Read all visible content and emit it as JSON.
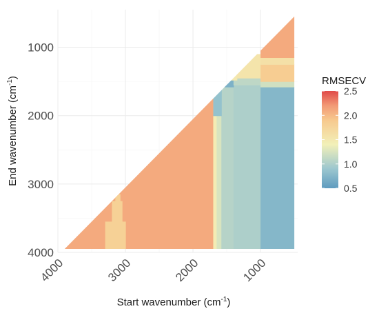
{
  "chart_data": {
    "type": "heatmap",
    "title": "",
    "xlabel": {
      "text": "Start wavenumber (cm",
      "sup": "-1",
      "tail": ")"
    },
    "ylabel": {
      "text": "End wavenumber (cm",
      "sup": "-1",
      "tail": ")"
    },
    "xlim": [
      4000,
      450
    ],
    "ylim": [
      450,
      4000
    ],
    "x_ticks": [
      4000,
      3000,
      2000,
      1000
    ],
    "y_ticks": [
      1000,
      2000,
      3000,
      4000
    ],
    "x_tick_labels": [
      "4000",
      "3000",
      "2000",
      "1000"
    ],
    "y_tick_labels": [
      "1000",
      "2000",
      "3000",
      "4000"
    ],
    "grid": true,
    "triangle": {
      "x_start": 3900,
      "y_start": 3950,
      "x_end": 500,
      "y_end": 550
    },
    "colorbar": {
      "title": "RMSECV",
      "ticks": [
        0.5,
        1.0,
        1.5,
        2.0,
        2.5
      ],
      "tick_labels": [
        "0.5",
        "1.0",
        "1.5",
        "2.0",
        "2.5"
      ],
      "range": [
        0.5,
        2.5
      ],
      "stops": [
        {
          "v": 0.5,
          "color": "#5e9bbf"
        },
        {
          "v": 0.9,
          "color": "#9cc7cf"
        },
        {
          "v": 1.4,
          "color": "#f2f0b8"
        },
        {
          "v": 1.9,
          "color": "#f7c98e"
        },
        {
          "v": 2.2,
          "color": "#f29a76"
        },
        {
          "v": 2.5,
          "color": "#e04a49"
        }
      ]
    },
    "regions": [
      {
        "x": [
          3900,
          1700
        ],
        "y": [
          550,
          3950
        ],
        "value": 2.1
      },
      {
        "x": [
          3300,
          3000
        ],
        "y": [
          3550,
          3950
        ],
        "value": 1.8
      },
      {
        "x": [
          3200,
          3050
        ],
        "y": [
          3250,
          3550
        ],
        "value": 1.8
      },
      {
        "x": [
          3150,
          3080
        ],
        "y": [
          3150,
          3250
        ],
        "value": 1.8
      },
      {
        "x": [
          1700,
          1650
        ],
        "y": [
          1800,
          3950
        ],
        "value": 1.45
      },
      {
        "x": [
          1650,
          1580
        ],
        "y": [
          1700,
          3950
        ],
        "value": 1.25
      },
      {
        "x": [
          1580,
          1400
        ],
        "y": [
          1550,
          3950
        ],
        "value": 1.05
      },
      {
        "x": [
          1400,
          1000
        ],
        "y": [
          1500,
          3950
        ],
        "value": 1.0
      },
      {
        "x": [
          1700,
          1580
        ],
        "y": [
          1580,
          2000
        ],
        "value": 0.85
      },
      {
        "x": [
          1580,
          1400
        ],
        "y": [
          1480,
          1580
        ],
        "value": 0.7
      },
      {
        "x": [
          1400,
          1000
        ],
        "y": [
          1450,
          1550
        ],
        "value": 1.1
      },
      {
        "x": [
          1550,
          1350
        ],
        "y": [
          1350,
          1480
        ],
        "value": 1.5
      },
      {
        "x": [
          1350,
          1000
        ],
        "y": [
          1100,
          1450
        ],
        "value": 1.55
      },
      {
        "x": [
          1000,
          500
        ],
        "y": [
          1580,
          3950
        ],
        "value": 0.75
      },
      {
        "x": [
          1000,
          500
        ],
        "y": [
          1500,
          1580
        ],
        "value": 1.2
      },
      {
        "x": [
          1000,
          500
        ],
        "y": [
          1250,
          1500
        ],
        "value": 1.85
      },
      {
        "x": [
          1000,
          500
        ],
        "y": [
          1150,
          1250
        ],
        "value": 1.6
      },
      {
        "x": [
          1000,
          500
        ],
        "y": [
          550,
          1150
        ],
        "value": 2.1
      }
    ]
  }
}
